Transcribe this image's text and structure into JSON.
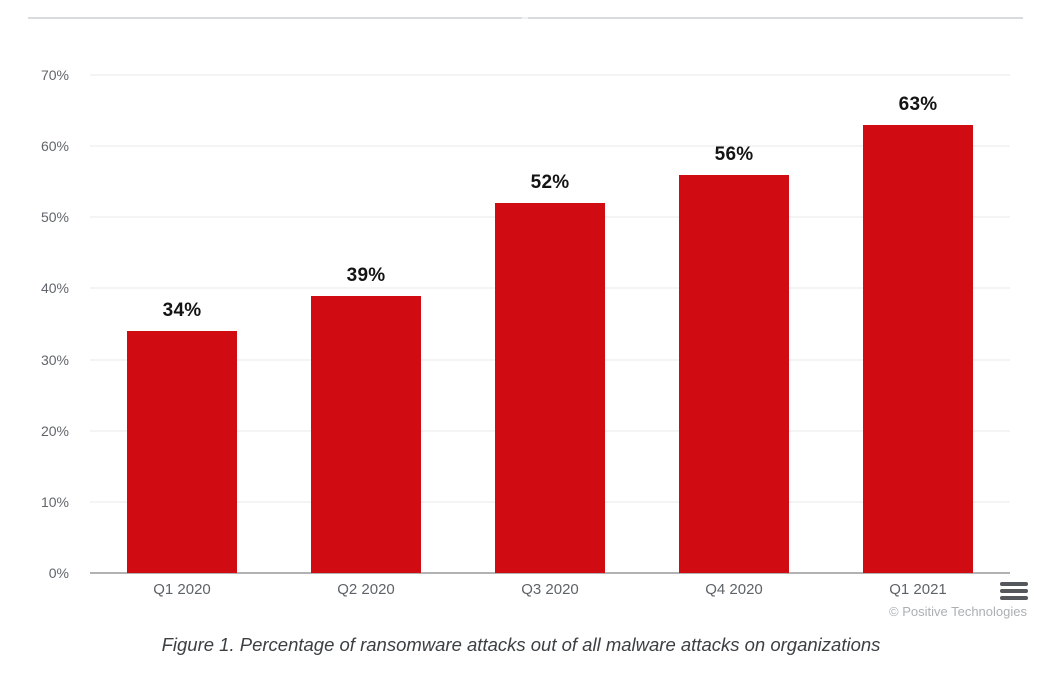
{
  "chart_data": {
    "type": "bar",
    "title": "",
    "xlabel": "",
    "ylabel": "",
    "categories": [
      "Q1 2020",
      "Q2 2020",
      "Q3 2020",
      "Q4 2020",
      "Q1 2021"
    ],
    "values": [
      34,
      39,
      52,
      56,
      63
    ],
    "value_labels": [
      "34%",
      "39%",
      "52%",
      "56%",
      "63%"
    ],
    "ylim": [
      0,
      70
    ],
    "ytick_step": 10,
    "ytick_labels": [
      "0%",
      "10%",
      "20%",
      "30%",
      "40%",
      "50%",
      "60%",
      "70%"
    ],
    "grid": true,
    "legend": "none",
    "bar_color": "#d00c12"
  },
  "caption": "Figure 1. Percentage of ransomware attacks out of all malware attacks on organizations",
  "watermark": "© Positive Technologies",
  "menu_icon": "hamburger-menu",
  "colors": {
    "bar_red": "#d00c12",
    "gridline": "#e8e8e8",
    "axis_line": "#b2b2b2",
    "tick_text": "#5f6368",
    "value_text": "#141414",
    "caption_text": "#3c4043",
    "watermark_text": "#abb0b5",
    "divider": "#d8dce1"
  }
}
